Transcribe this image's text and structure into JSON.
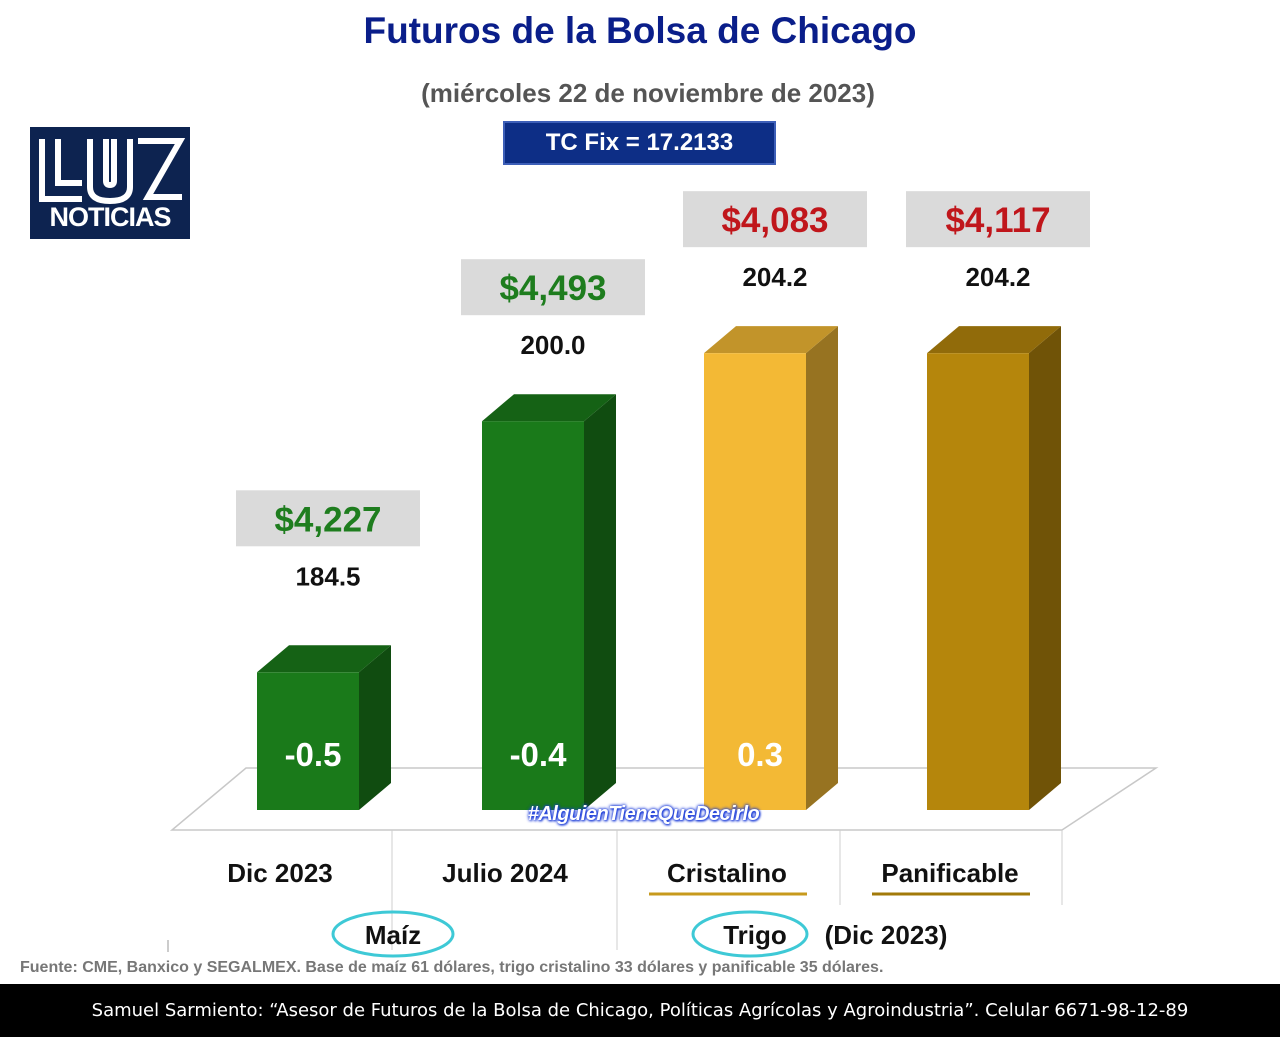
{
  "header": {
    "title": "Futuros de la Bolsa de Chicago",
    "subtitle": "(miércoles 22 de noviembre de 2023)",
    "tc_fix": "TC Fix = 17.2133"
  },
  "logo": {
    "top": "LUZ",
    "bottom": "NOTICIAS"
  },
  "hashtag": "#AlguienTieneQueDecirlo",
  "source": "Fuente: CME, Banxico y SEGALMEX. Base de maíz 61 dólares, trigo cristalino 33 dólares y panificable 35 dólares.",
  "footer": "Samuel Sarmiento: “Asesor de Futuros de la Bolsa de Chicago, Políticas Agrícolas y Agroindustria”. Celular 6671-98-12-89",
  "chart_data": {
    "type": "bar",
    "categories": [
      "Dic 2023",
      "Julio 2024",
      "Cristalino",
      "Panificable"
    ],
    "values": [
      184.5,
      200.0,
      204.2,
      204.2
    ],
    "value_labels": [
      "184.5",
      "200.0",
      "204.2",
      "204.2"
    ],
    "price_labels": [
      "$4,227",
      "$4,493",
      "$4,083",
      "$4,117"
    ],
    "change_labels": [
      "-0.5",
      "-0.4",
      "0.3",
      ""
    ],
    "groups": [
      {
        "name": "Maíz",
        "suffix": ""
      },
      {
        "name": "Trigo",
        "suffix": "(Dic 2023)"
      }
    ],
    "colors": {
      "maiz": "#1a7a1a",
      "cristalino": "#f3b935",
      "panificable": "#b5860c",
      "price_up": "#1e7d1e",
      "price_down": "#c0161b",
      "price_box": "#dadada",
      "group_circle": "#3ec9d6"
    }
  }
}
